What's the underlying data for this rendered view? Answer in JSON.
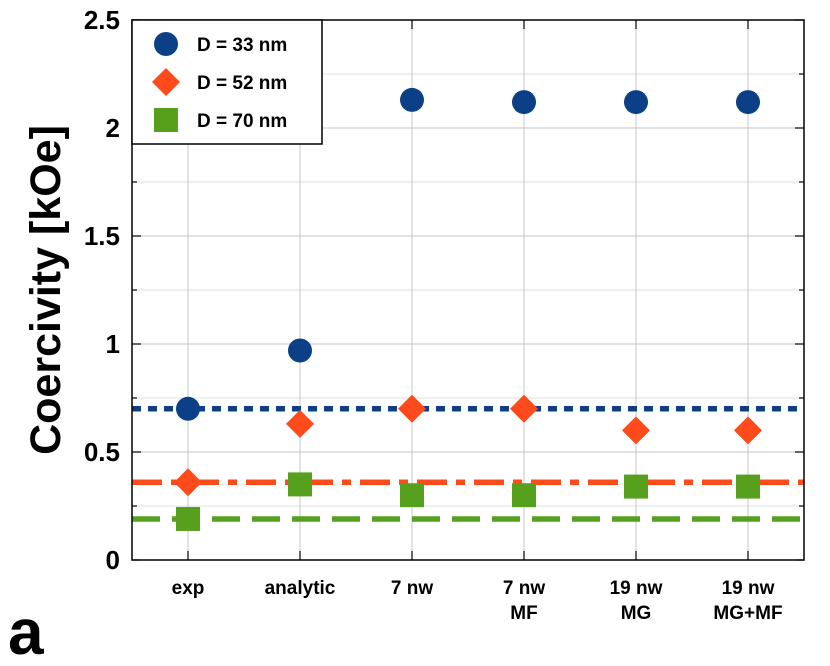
{
  "panel_label": "a",
  "chart_data": {
    "type": "scatter",
    "ylabel": "Coercivity [kOe]",
    "xlabel": "",
    "ylim": [
      0,
      2.5
    ],
    "grid": true,
    "legend_position": "top-left",
    "categories": [
      [
        "exp"
      ],
      [
        "analytic"
      ],
      [
        "7 nw"
      ],
      [
        "7 nw",
        "MF"
      ],
      [
        "19 nw",
        "MG"
      ],
      [
        "19 nw",
        "MG+MF"
      ]
    ],
    "y_ticks": [
      {
        "value": 0,
        "label": "0"
      },
      {
        "value": 0.5,
        "label": "0.5"
      },
      {
        "value": 1,
        "label": "1"
      },
      {
        "value": 1.5,
        "label": "1.5"
      },
      {
        "value": 2,
        "label": "2"
      },
      {
        "value": 2.5,
        "label": "2.5"
      }
    ],
    "series": [
      {
        "name": "D = 33 nm",
        "marker": "circle",
        "color": "#0b3f86",
        "values": [
          0.7,
          0.97,
          2.13,
          2.12,
          2.12,
          2.12
        ]
      },
      {
        "name": "D = 52 nm",
        "marker": "diamond",
        "color": "#ff4a1c",
        "values": [
          0.36,
          0.63,
          0.7,
          0.7,
          0.6,
          0.6
        ]
      },
      {
        "name": "D = 70 nm",
        "marker": "square",
        "color": "#56a01e",
        "values": [
          0.19,
          0.35,
          0.3,
          0.3,
          0.34,
          0.34
        ]
      }
    ],
    "reference_lines": [
      {
        "series": "D = 33 nm",
        "value": 0.7,
        "style": "dotted",
        "color": "#0b3f86"
      },
      {
        "series": "D = 52 nm",
        "value": 0.36,
        "style": "dash-dot",
        "color": "#ff4a1c"
      },
      {
        "series": "D = 70 nm",
        "value": 0.19,
        "style": "dashed",
        "color": "#56a01e"
      }
    ]
  }
}
